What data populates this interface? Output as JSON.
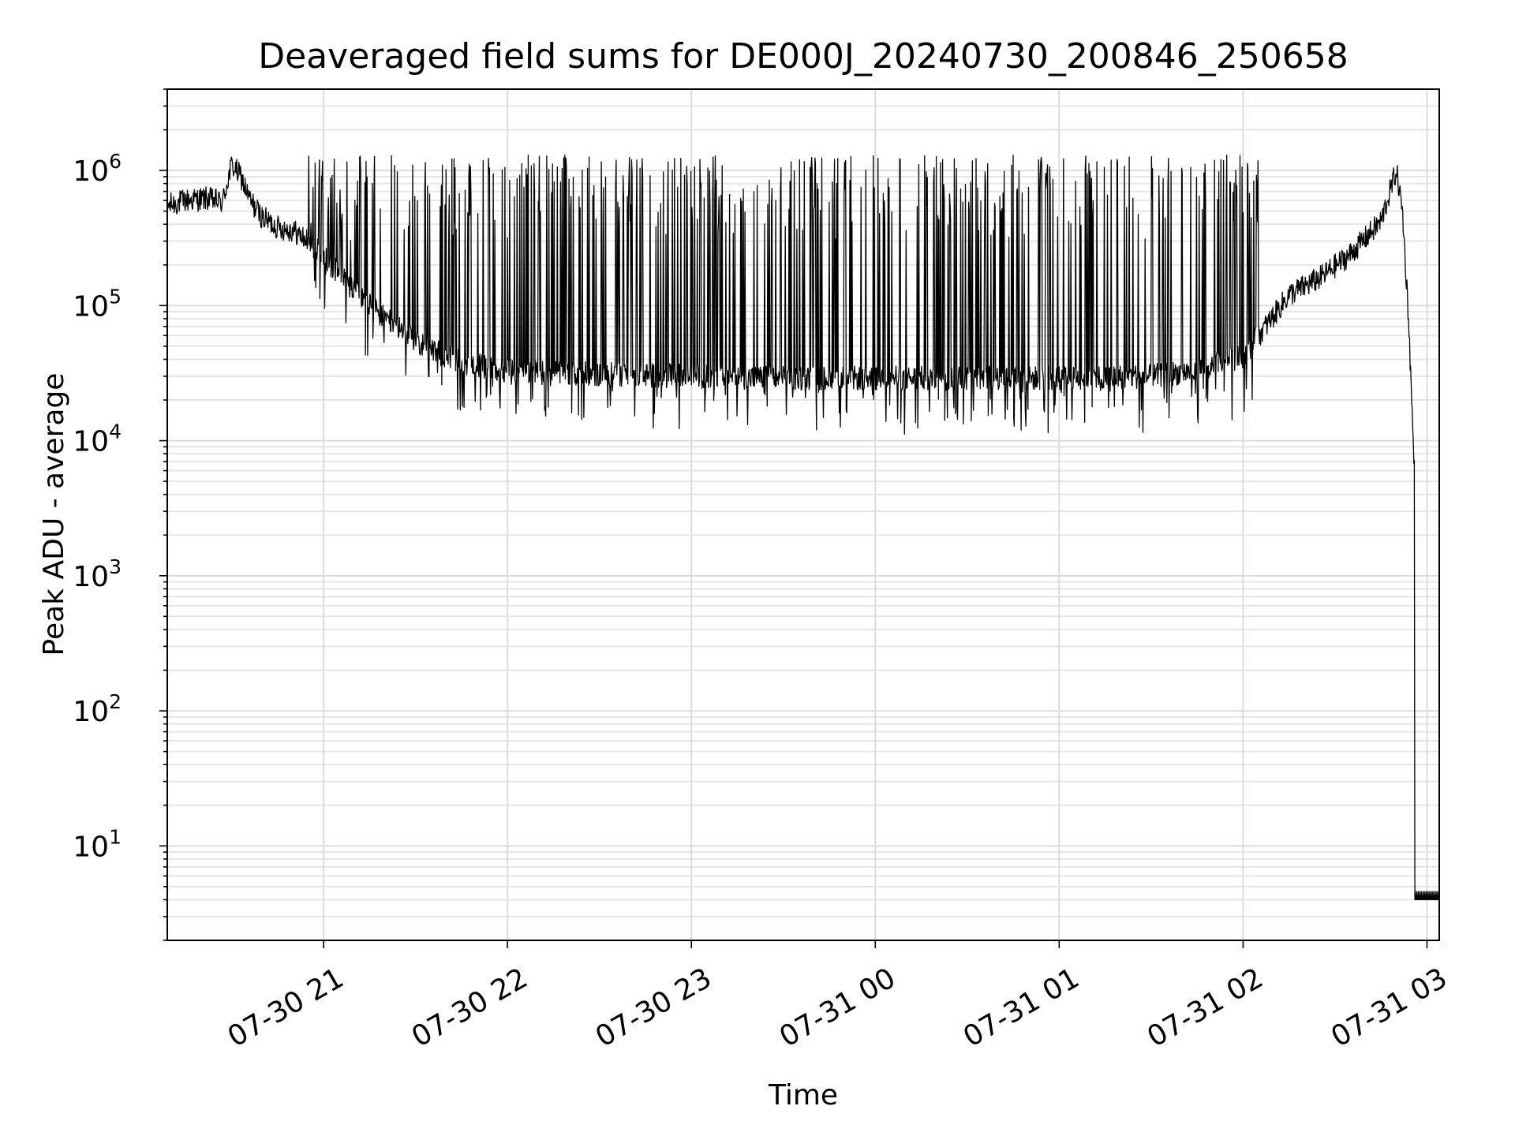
{
  "chart_data": {
    "type": "line",
    "title": "Deaveraged field sums for DE000J_20240730_200846_250658",
    "xlabel": "Time",
    "ylabel": "Peak ADU - average",
    "yscale": "log",
    "ylim": [
      2,
      4000000
    ],
    "xlim": [
      "2024-07-30 20:09",
      "2024-07-31 03:04"
    ],
    "x_ticks": [
      "07-30 21",
      "07-30 22",
      "07-30 23",
      "07-31 00",
      "07-31 01",
      "07-31 02",
      "07-31 03"
    ],
    "y_ticks": [
      {
        "base": "10",
        "exp": "1"
      },
      {
        "base": "10",
        "exp": "2"
      },
      {
        "base": "10",
        "exp": "3"
      },
      {
        "base": "10",
        "exp": "4"
      },
      {
        "base": "10",
        "exp": "5"
      },
      {
        "base": "10",
        "exp": "6"
      }
    ],
    "grid": true,
    "line_color": "#000000",
    "series": [
      {
        "x": [
          "2024-07-30 20:09",
          "2024-07-30 20:15",
          "2024-07-30 20:22",
          "2024-07-30 20:27",
          "2024-07-30 20:30",
          "2024-07-30 20:33",
          "2024-07-30 20:36",
          "2024-07-30 20:40",
          "2024-07-30 20:45",
          "2024-07-30 20:50",
          "2024-07-30 20:55",
          "2024-07-30 21:00",
          "2024-07-30 21:10",
          "2024-07-30 21:20",
          "2024-07-30 21:30",
          "2024-07-30 21:40",
          "2024-07-30 21:50",
          "2024-07-30 22:00",
          "2024-07-30 22:10",
          "2024-07-30 22:30",
          "2024-07-30 23:00",
          "2024-07-30 23:30",
          "2024-07-31 00:00",
          "2024-07-31 00:30",
          "2024-07-31 01:00",
          "2024-07-31 01:30",
          "2024-07-31 01:45",
          "2024-07-31 02:00",
          "2024-07-31 02:15",
          "2024-07-31 02:25",
          "2024-07-31 02:35",
          "2024-07-31 02:45",
          "2024-07-31 02:50",
          "2024-07-31 02:52",
          "2024-07-31 02:54",
          "2024-07-31 02:56",
          "2024-07-31 02:57",
          "2024-07-31 03:04"
        ],
        "y": [
          550000,
          600000,
          620000,
          580000,
          1100000,
          900000,
          600000,
          450000,
          380000,
          360000,
          300000,
          230000,
          130000,
          80000,
          55000,
          42000,
          36000,
          33000,
          32000,
          31000,
          30000,
          29000,
          29000,
          29000,
          29000,
          30000,
          33000,
          42000,
          120000,
          160000,
          240000,
          420000,
          1000000,
          500000,
          80000,
          5000,
          4,
          4
        ]
      }
    ]
  }
}
